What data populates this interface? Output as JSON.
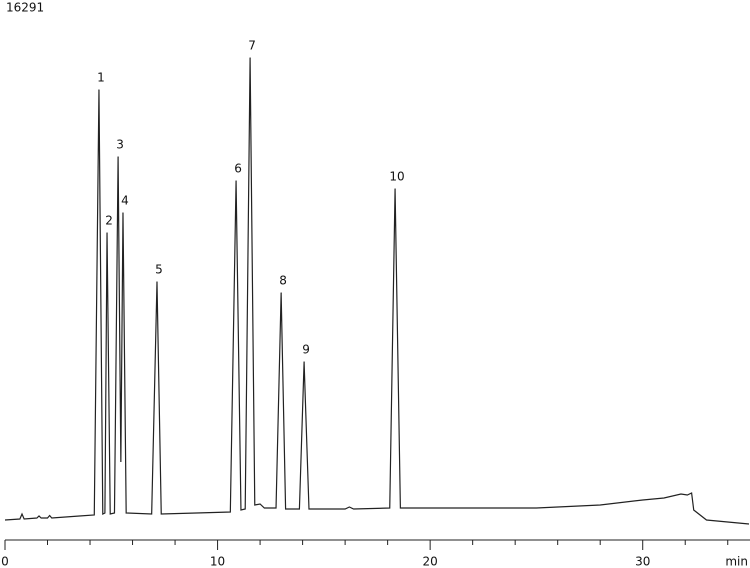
{
  "chart_data": {
    "type": "line",
    "title": "16291",
    "x_label": "min",
    "xlim": [
      0,
      35
    ],
    "ylim": [
      -2,
      100
    ],
    "xticks": [
      0,
      10,
      20,
      30
    ],
    "xminor": [
      2,
      4,
      6,
      8,
      12,
      14,
      16,
      18,
      22,
      24,
      26,
      28,
      32,
      34
    ],
    "color": "#222222",
    "x": [
      0,
      0.7,
      0.8,
      0.9,
      1.5,
      1.6,
      1.7,
      2.0,
      2.1,
      2.2,
      3.5,
      4.2,
      4.42,
      4.6,
      4.7,
      4.8,
      4.95,
      5.15,
      5.32,
      5.45,
      5.55,
      5.7,
      6.9,
      7.15,
      7.35,
      9,
      10.6,
      10.87,
      11.1,
      11.3,
      11.53,
      11.75,
      12,
      12.2,
      12.75,
      12.99,
      13.2,
      13.85,
      14.07,
      14.3,
      16,
      16.2,
      16.4,
      18.1,
      18.35,
      18.6,
      20,
      25,
      28,
      30,
      31,
      31.8,
      32.1,
      32.3,
      32.4,
      33,
      35
    ],
    "values": [
      0,
      0.2,
      1.2,
      0.2,
      0.4,
      0.8,
      0.4,
      0.4,
      0.9,
      0.4,
      0.8,
      1.0,
      86,
      1.2,
      1.4,
      57.4,
      1.2,
      1.4,
      72.6,
      11.6,
      61.4,
      1.4,
      1.2,
      47.6,
      1.2,
      1.4,
      1.6,
      67.8,
      2.0,
      2.2,
      92.4,
      3.0,
      3.2,
      2.4,
      2.4,
      45.4,
      2.2,
      2.2,
      31.6,
      2.2,
      2.2,
      2.6,
      2.2,
      2.4,
      66.2,
      2.4,
      2.4,
      2.4,
      3.0,
      4.0,
      4.4,
      5.2,
      5.0,
      5.4,
      2.0,
      0,
      -0.8
    ],
    "peaks": [
      {
        "label": "1",
        "x": 4.42,
        "y": 86
      },
      {
        "label": "2",
        "x": 4.8,
        "y": 57.4
      },
      {
        "label": "3",
        "x": 5.32,
        "y": 72.6
      },
      {
        "label": "4",
        "x": 5.55,
        "y": 61.4
      },
      {
        "label": "5",
        "x": 7.15,
        "y": 47.6
      },
      {
        "label": "6",
        "x": 10.87,
        "y": 67.8
      },
      {
        "label": "7",
        "x": 11.53,
        "y": 92.4
      },
      {
        "label": "8",
        "x": 12.99,
        "y": 45.4
      },
      {
        "label": "9",
        "x": 14.07,
        "y": 31.6
      },
      {
        "label": "10",
        "x": 18.35,
        "y": 66.2
      }
    ]
  }
}
